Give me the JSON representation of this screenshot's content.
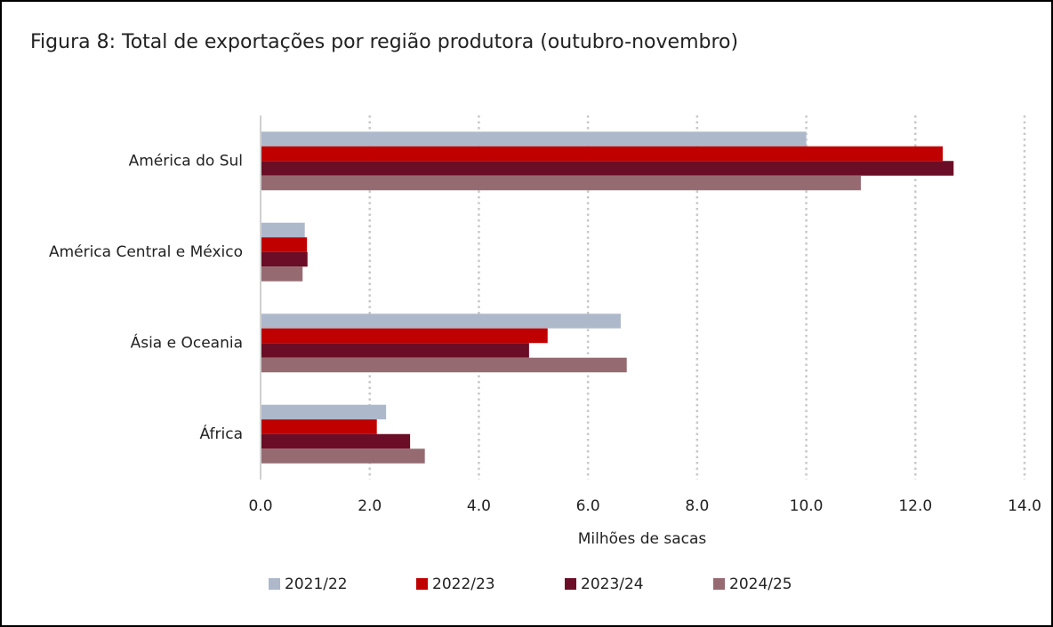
{
  "chart_data": {
    "type": "barh",
    "title": "Figura 8: Total de exportações por região produtora (outubro-novembro)",
    "x_label": "Milhões de sacas",
    "categories": [
      "América do Sul",
      "América Central e México",
      "Ásia e Oceania",
      "África"
    ],
    "series": [
      {
        "name": "2021/22",
        "color": "#adb9ca",
        "values": [
          10.0,
          0.81,
          6.6,
          2.3
        ]
      },
      {
        "name": "2022/23",
        "color": "#c00000",
        "values": [
          12.5,
          0.85,
          5.26,
          2.13
        ]
      },
      {
        "name": "2023/24",
        "color": "#6b0d26",
        "values": [
          12.7,
          0.86,
          4.92,
          2.74
        ]
      },
      {
        "name": "2024/25",
        "color": "#956b71",
        "values": [
          11.0,
          0.77,
          6.71,
          3.01
        ]
      }
    ],
    "xlim": [
      0,
      14
    ],
    "xticks": [
      {
        "value": 0,
        "label": "0.0"
      },
      {
        "value": 2,
        "label": "2.0"
      },
      {
        "value": 4,
        "label": "4.0"
      },
      {
        "value": 6,
        "label": "6.0"
      },
      {
        "value": 8,
        "label": "8.0"
      },
      {
        "value": 10,
        "label": "10.0"
      },
      {
        "value": 12,
        "label": "12.0"
      },
      {
        "value": 14,
        "label": "14.0"
      }
    ],
    "grid": true,
    "legend": "bottom"
  }
}
